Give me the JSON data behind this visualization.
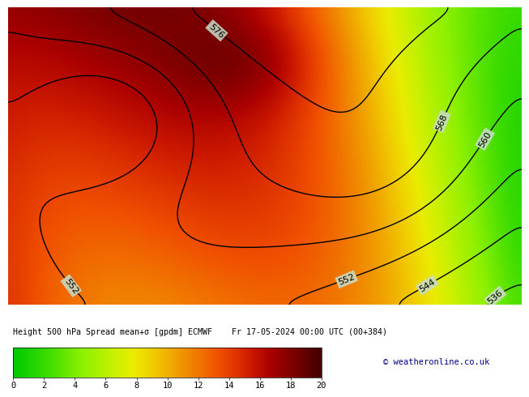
{
  "title_line1": "Height 500 hPa Spread mean+σ [gpdm] ECMWF",
  "title_line2": "Fr 17-05-2024 00:00 UTC (00+384)",
  "colorbar_ticks": [
    0,
    2,
    4,
    6,
    8,
    10,
    12,
    14,
    16,
    18,
    20
  ],
  "contour_levels": [
    536,
    544,
    552,
    560,
    568,
    576
  ],
  "colormap_colors": [
    "#00c800",
    "#1ed200",
    "#3cdc00",
    "#64e600",
    "#8cf000",
    "#aaf000",
    "#ccf000",
    "#eaec00",
    "#f0d000",
    "#f0b000",
    "#f09000",
    "#f07000",
    "#f05000",
    "#e03400",
    "#c81600",
    "#aa0000",
    "#880000",
    "#660000",
    "#440000"
  ],
  "vmin": 0,
  "vmax": 20,
  "fig_bg": "#ffffff",
  "copyright_text": "© weatheronline.co.uk",
  "lon_min": -145,
  "lon_max": -50,
  "lat_min": 20,
  "lat_max": 75,
  "map_line_color_coast": "#aaaaaa",
  "map_line_color_states": "#0000cc",
  "contour_label_bg": "#c8dcc8"
}
